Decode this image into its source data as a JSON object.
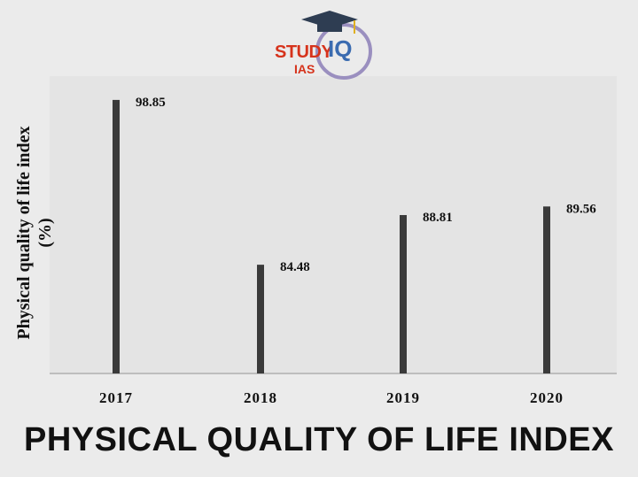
{
  "logo": {
    "brand": "STUDY",
    "iq": "IQ",
    "sub": "IAS"
  },
  "chart_data": {
    "type": "bar",
    "title": "PHYSICAL QUALITY OF LIFE INDEX",
    "ylabel": "Physical quality of life index (%)",
    "ylabel_lines": [
      "Physical quality of life index",
      "(%)"
    ],
    "xlabel": "",
    "categories": [
      "2017",
      "2018",
      "2019",
      "2020"
    ],
    "values": [
      98.85,
      84.48,
      88.81,
      89.56
    ],
    "value_labels": [
      "98.85",
      "84.48",
      "88.81",
      "89.56"
    ],
    "ylim": [
      75,
      100
    ],
    "grid": false,
    "bar_color": "#3a3a3a"
  }
}
